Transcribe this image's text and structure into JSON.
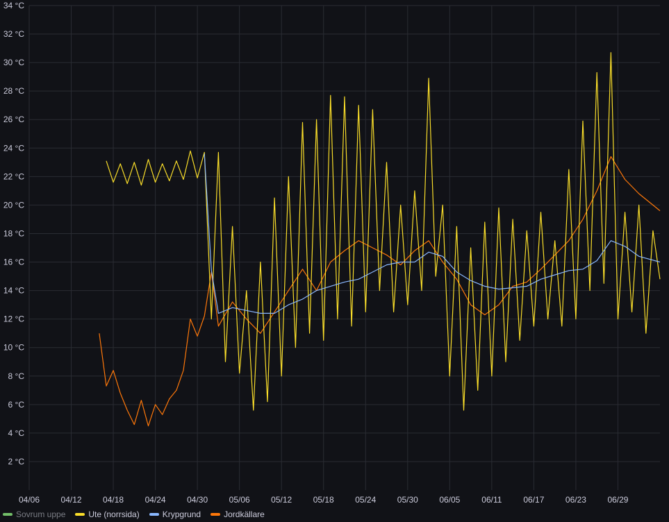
{
  "chart_data": {
    "type": "line",
    "title": "",
    "xlabel": "",
    "ylabel": "",
    "y_unit": "°C",
    "ylim": [
      0,
      34
    ],
    "y_ticks": [
      "2 °C",
      "4 °C",
      "6 °C",
      "8 °C",
      "10 °C",
      "12 °C",
      "14 °C",
      "16 °C",
      "18 °C",
      "20 °C",
      "22 °C",
      "24 °C",
      "26 °C",
      "28 °C",
      "30 °C",
      "32 °C",
      "34 °C"
    ],
    "x_ticks": [
      "04/06",
      "04/12",
      "04/18",
      "04/24",
      "04/30",
      "05/06",
      "05/12",
      "05/18",
      "05/24",
      "05/30",
      "06/05",
      "06/11",
      "06/17",
      "06/23",
      "06/29"
    ],
    "xlim": [
      "04/06",
      "07/05"
    ],
    "grid": true,
    "legend_position": "bottom-left",
    "series": [
      {
        "name": "Sovrum uppe",
        "color": "#73bf69",
        "hidden": true,
        "points": []
      },
      {
        "name": "Ute (norrsida)",
        "color": "#fade2a",
        "points": [
          [
            "04/17",
            23.1
          ],
          [
            "04/18",
            21.6
          ],
          [
            "04/19",
            22.9
          ],
          [
            "04/20",
            21.5
          ],
          [
            "04/21",
            23.0
          ],
          [
            "04/22",
            21.4
          ],
          [
            "04/23",
            23.2
          ],
          [
            "04/24",
            21.6
          ],
          [
            "04/25",
            22.9
          ],
          [
            "04/26",
            21.7
          ],
          [
            "04/27",
            23.1
          ],
          [
            "04/28",
            21.8
          ],
          [
            "04/29",
            23.8
          ],
          [
            "04/30",
            21.9
          ],
          [
            "05/01",
            23.7
          ],
          [
            "05/02",
            12.0
          ],
          [
            "05/03",
            23.7
          ],
          [
            "05/04",
            9.0
          ],
          [
            "05/05",
            18.5
          ],
          [
            "05/06",
            8.2
          ],
          [
            "05/07",
            14.0
          ],
          [
            "05/08",
            5.6
          ],
          [
            "05/09",
            16.0
          ],
          [
            "05/10",
            6.2
          ],
          [
            "05/11",
            20.5
          ],
          [
            "05/12",
            8.0
          ],
          [
            "05/13",
            22.0
          ],
          [
            "05/14",
            10.0
          ],
          [
            "05/15",
            25.8
          ],
          [
            "05/16",
            11.0
          ],
          [
            "05/17",
            26.0
          ],
          [
            "05/18",
            10.5
          ],
          [
            "05/19",
            27.7
          ],
          [
            "05/20",
            12.0
          ],
          [
            "05/21",
            27.6
          ],
          [
            "05/22",
            11.5
          ],
          [
            "05/23",
            27.0
          ],
          [
            "05/24",
            12.5
          ],
          [
            "05/25",
            26.7
          ],
          [
            "05/26",
            14.0
          ],
          [
            "05/27",
            23.0
          ],
          [
            "05/28",
            12.5
          ],
          [
            "05/29",
            20.0
          ],
          [
            "05/30",
            13.0
          ],
          [
            "05/31",
            21.0
          ],
          [
            "06/01",
            14.0
          ],
          [
            "06/02",
            28.9
          ],
          [
            "06/03",
            15.0
          ],
          [
            "06/04",
            20.0
          ],
          [
            "06/05",
            8.0
          ],
          [
            "06/06",
            18.5
          ],
          [
            "06/07",
            5.6
          ],
          [
            "06/08",
            17.0
          ],
          [
            "06/09",
            7.0
          ],
          [
            "06/10",
            18.8
          ],
          [
            "06/11",
            8.0
          ],
          [
            "06/12",
            19.8
          ],
          [
            "06/13",
            9.0
          ],
          [
            "06/14",
            19.0
          ],
          [
            "06/15",
            10.5
          ],
          [
            "06/16",
            18.2
          ],
          [
            "06/17",
            11.5
          ],
          [
            "06/18",
            19.5
          ],
          [
            "06/19",
            12.0
          ],
          [
            "06/20",
            17.5
          ],
          [
            "06/21",
            11.5
          ],
          [
            "06/22",
            22.5
          ],
          [
            "06/23",
            12.0
          ],
          [
            "06/24",
            25.9
          ],
          [
            "06/25",
            14.0
          ],
          [
            "06/26",
            29.3
          ],
          [
            "06/27",
            14.5
          ],
          [
            "06/28",
            30.7
          ],
          [
            "06/29",
            12.0
          ],
          [
            "06/30",
            19.5
          ],
          [
            "07/01",
            12.5
          ],
          [
            "07/02",
            20.0
          ],
          [
            "07/03",
            11.0
          ],
          [
            "07/04",
            18.2
          ],
          [
            "07/05",
            14.8
          ]
        ]
      },
      {
        "name": "Krypgrund",
        "color": "#8ab8ff",
        "points": [
          [
            "05/01",
            23.6
          ],
          [
            "05/02",
            15.4
          ],
          [
            "05/03",
            12.4
          ],
          [
            "05/05",
            12.8
          ],
          [
            "05/07",
            12.6
          ],
          [
            "05/09",
            12.4
          ],
          [
            "05/11",
            12.4
          ],
          [
            "05/13",
            13.0
          ],
          [
            "05/15",
            13.4
          ],
          [
            "05/17",
            14.0
          ],
          [
            "05/19",
            14.3
          ],
          [
            "05/21",
            14.6
          ],
          [
            "05/23",
            14.8
          ],
          [
            "05/25",
            15.3
          ],
          [
            "05/27",
            15.8
          ],
          [
            "05/29",
            16.0
          ],
          [
            "05/31",
            16.0
          ],
          [
            "06/02",
            16.7
          ],
          [
            "06/04",
            16.4
          ],
          [
            "06/06",
            15.3
          ],
          [
            "06/08",
            14.7
          ],
          [
            "06/10",
            14.3
          ],
          [
            "06/12",
            14.1
          ],
          [
            "06/14",
            14.2
          ],
          [
            "06/16",
            14.3
          ],
          [
            "06/18",
            14.8
          ],
          [
            "06/20",
            15.1
          ],
          [
            "06/22",
            15.4
          ],
          [
            "06/24",
            15.5
          ],
          [
            "06/26",
            16.1
          ],
          [
            "06/28",
            17.5
          ],
          [
            "06/30",
            17.1
          ],
          [
            "07/02",
            16.4
          ],
          [
            "07/05",
            16.0
          ]
        ]
      },
      {
        "name": "Jordkällare",
        "color": "#ff780a",
        "points": [
          [
            "04/16",
            11.0
          ],
          [
            "04/17",
            7.3
          ],
          [
            "04/18",
            8.4
          ],
          [
            "04/19",
            6.8
          ],
          [
            "04/20",
            5.6
          ],
          [
            "04/21",
            4.6
          ],
          [
            "04/22",
            6.3
          ],
          [
            "04/23",
            4.5
          ],
          [
            "04/24",
            6.0
          ],
          [
            "04/25",
            5.3
          ],
          [
            "04/26",
            6.4
          ],
          [
            "04/27",
            7.0
          ],
          [
            "04/28",
            8.4
          ],
          [
            "04/29",
            12.0
          ],
          [
            "04/30",
            10.8
          ],
          [
            "05/01",
            12.2
          ],
          [
            "05/02",
            15.3
          ],
          [
            "05/03",
            11.5
          ],
          [
            "05/05",
            13.2
          ],
          [
            "05/07",
            12.0
          ],
          [
            "05/09",
            11.0
          ],
          [
            "05/11",
            12.5
          ],
          [
            "05/13",
            14.0
          ],
          [
            "05/15",
            15.5
          ],
          [
            "05/17",
            14.0
          ],
          [
            "05/19",
            16.0
          ],
          [
            "05/21",
            16.8
          ],
          [
            "05/23",
            17.5
          ],
          [
            "05/25",
            17.0
          ],
          [
            "05/27",
            16.5
          ],
          [
            "05/29",
            15.8
          ],
          [
            "05/31",
            16.8
          ],
          [
            "06/02",
            17.5
          ],
          [
            "06/04",
            16.0
          ],
          [
            "06/06",
            14.8
          ],
          [
            "06/08",
            13.0
          ],
          [
            "06/10",
            12.3
          ],
          [
            "06/12",
            13.0
          ],
          [
            "06/14",
            14.3
          ],
          [
            "06/16",
            14.6
          ],
          [
            "06/18",
            15.5
          ],
          [
            "06/20",
            16.5
          ],
          [
            "06/22",
            17.5
          ],
          [
            "06/24",
            19.0
          ],
          [
            "06/26",
            21.0
          ],
          [
            "06/28",
            23.4
          ],
          [
            "06/30",
            21.8
          ],
          [
            "07/02",
            20.8
          ],
          [
            "07/04",
            20.0
          ],
          [
            "07/05",
            19.6
          ]
        ]
      }
    ]
  }
}
